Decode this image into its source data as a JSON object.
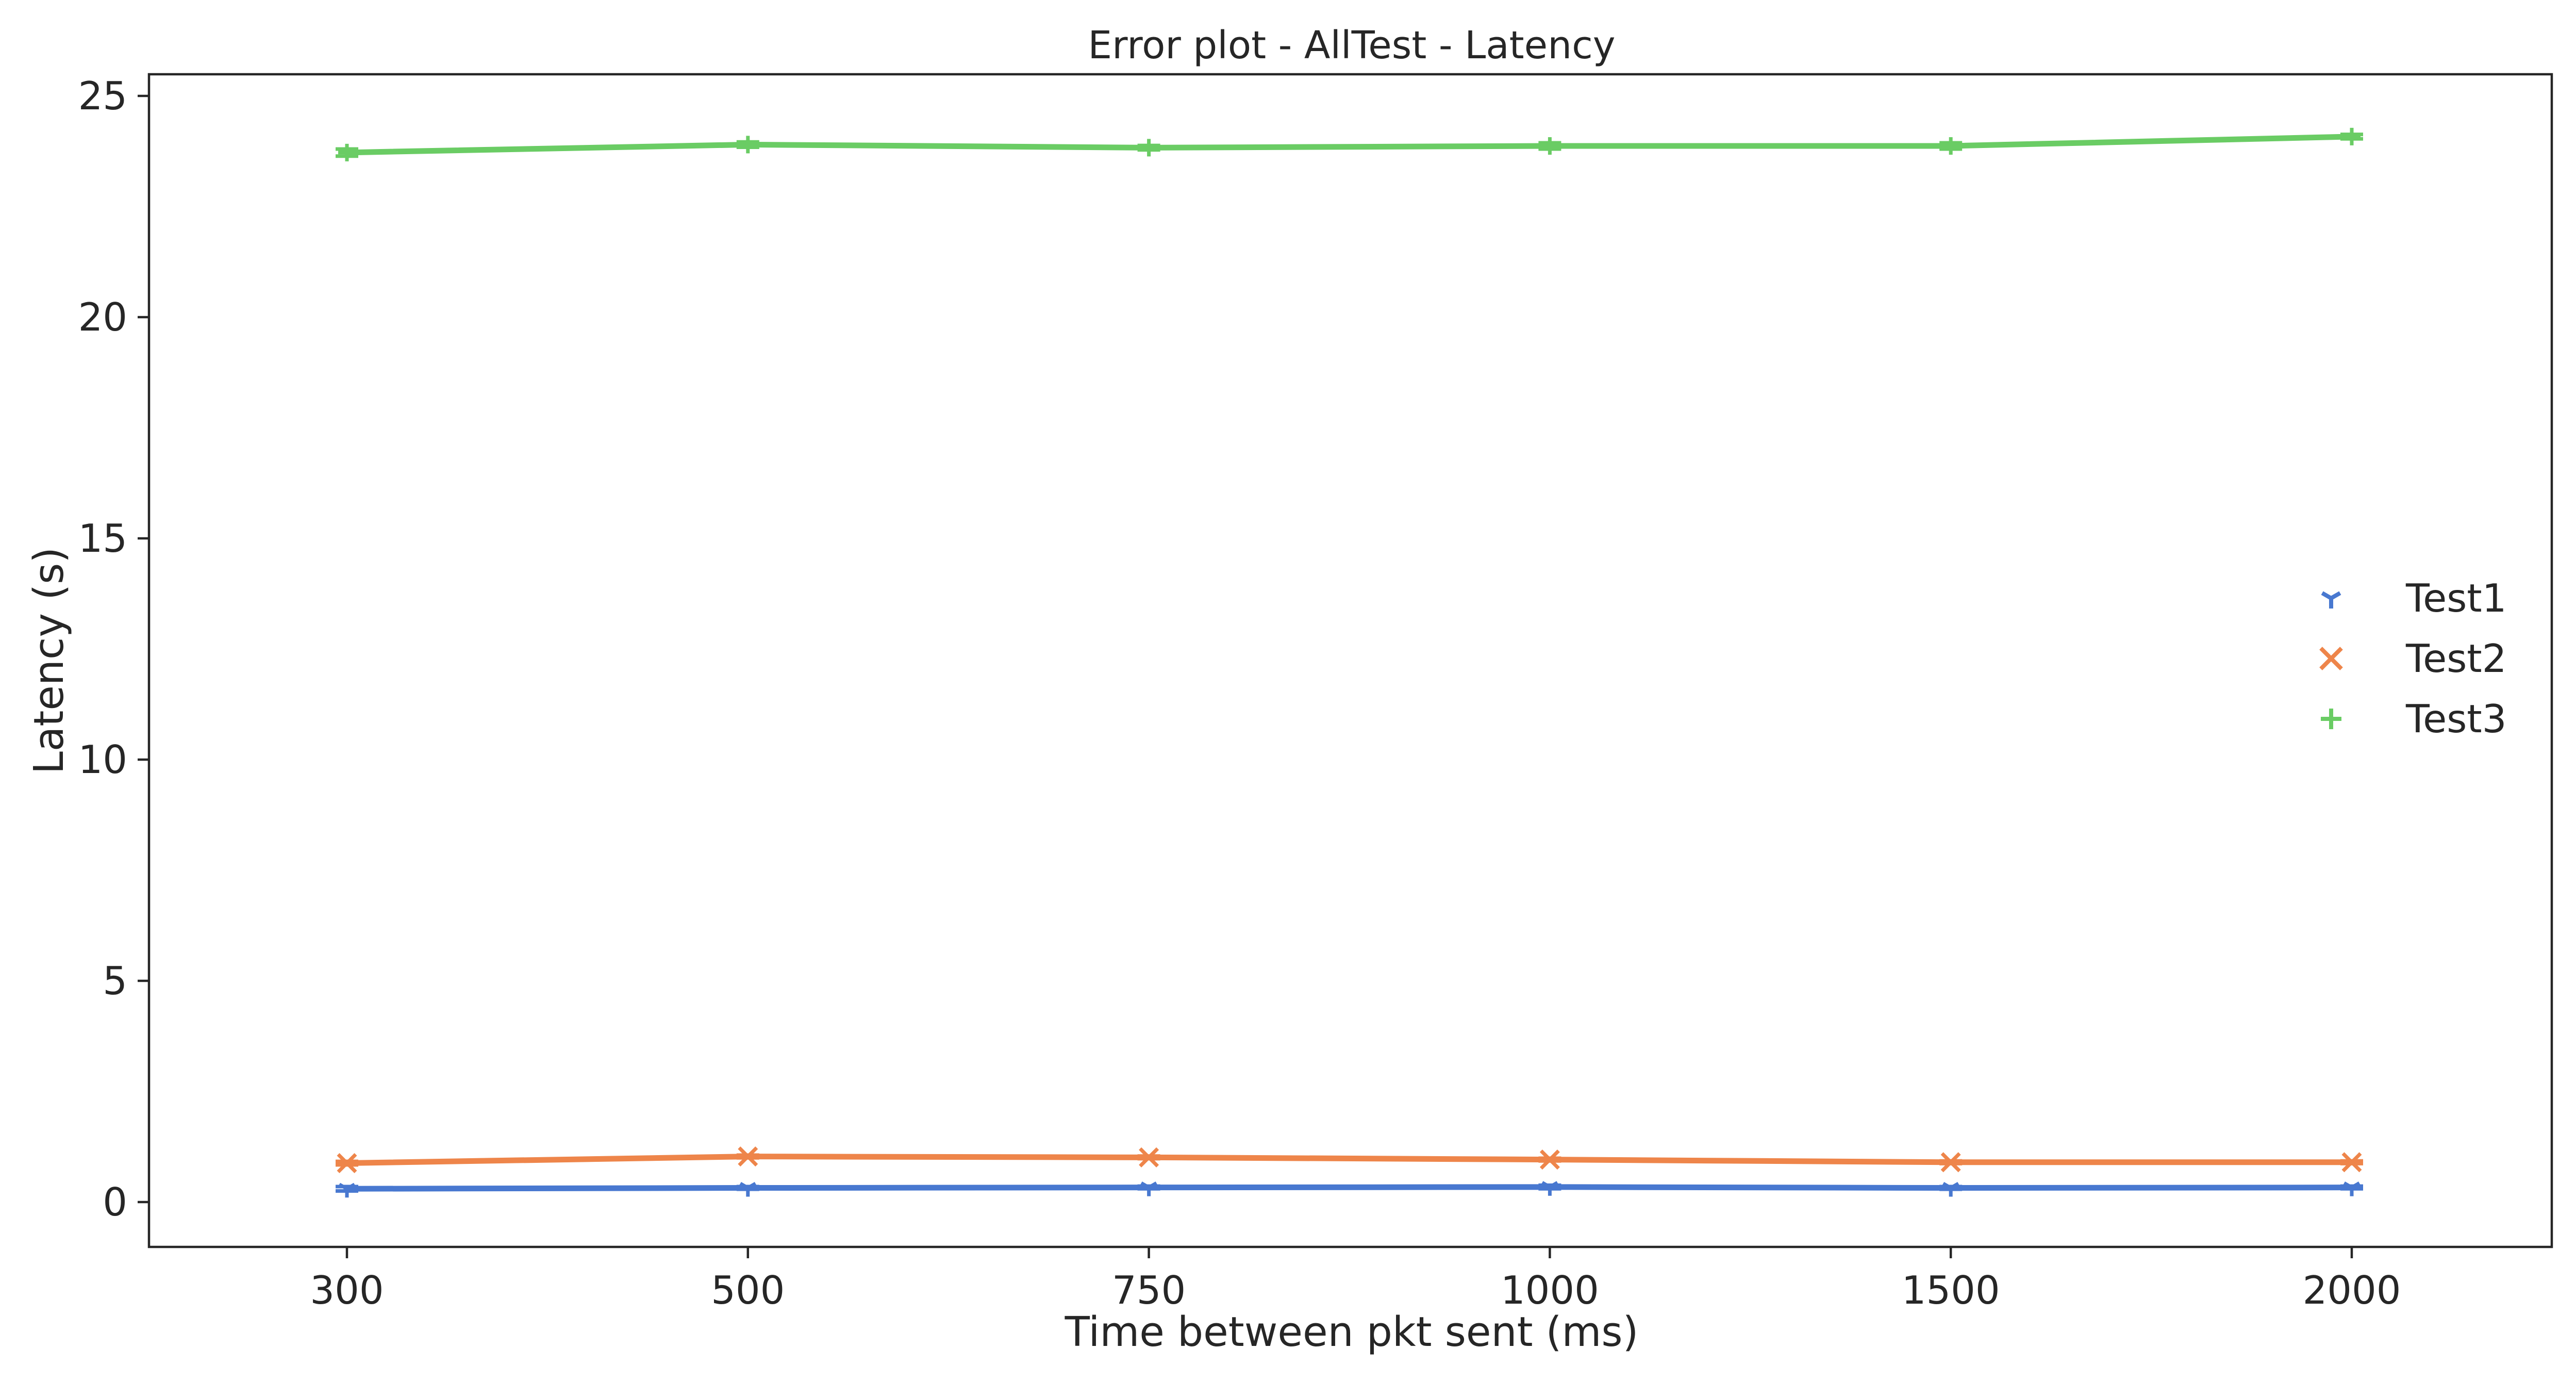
{
  "chart_data": {
    "type": "line",
    "title": "Error plot - AllTest - Latency",
    "xlabel": "Time between pkt sent (ms)",
    "ylabel": "Latency (s)",
    "categories": [
      "300",
      "500",
      "750",
      "1000",
      "1500",
      "2000"
    ],
    "y_ticks": [
      "0",
      "5",
      "10",
      "15",
      "20",
      "25"
    ],
    "ylim": [
      -1,
      25.5
    ],
    "grid": false,
    "legend_position": "center-right",
    "series": [
      {
        "name": "Test1",
        "values": [
          0.3,
          0.32,
          0.33,
          0.34,
          0.32,
          0.33
        ],
        "error": [
          0.05,
          0.03,
          0.03,
          0.04,
          0.03,
          0.03
        ],
        "color": "#4878d0",
        "marker": "tri-down"
      },
      {
        "name": "Test2",
        "values": [
          0.88,
          1.03,
          1.01,
          0.96,
          0.9,
          0.9
        ],
        "error": [
          0.04,
          0.03,
          0.03,
          0.03,
          0.03,
          0.03
        ],
        "color": "#ee854a",
        "marker": "x"
      },
      {
        "name": "Test3",
        "values": [
          23.72,
          23.9,
          23.83,
          23.87,
          23.87,
          24.08
        ],
        "error": [
          0.08,
          0.06,
          0.05,
          0.07,
          0.07,
          0.05
        ],
        "color": "#6acc64",
        "marker": "plus"
      }
    ]
  }
}
